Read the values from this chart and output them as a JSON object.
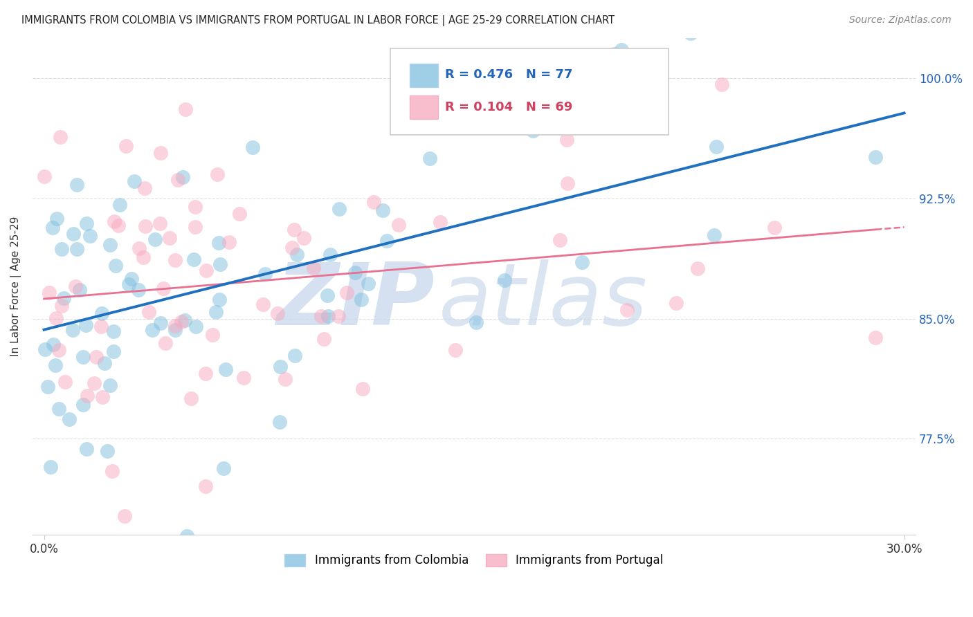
{
  "title": "IMMIGRANTS FROM COLOMBIA VS IMMIGRANTS FROM PORTUGAL IN LABOR FORCE | AGE 25-29 CORRELATION CHART",
  "source": "Source: ZipAtlas.com",
  "ylabel": "In Labor Force | Age 25-29",
  "xlim": [
    0.0,
    0.3
  ],
  "ylim": [
    0.715,
    1.025
  ],
  "yticks": [
    0.775,
    0.85,
    0.925,
    1.0
  ],
  "ytick_labels": [
    "77.5%",
    "85.0%",
    "92.5%",
    "100.0%"
  ],
  "xticks": [
    0.0,
    0.3
  ],
  "xtick_labels": [
    "0.0%",
    "30.0%"
  ],
  "colombia_R": 0.476,
  "colombia_N": 77,
  "portugal_R": 0.104,
  "portugal_N": 69,
  "colombia_color": "#7fbfdf",
  "portugal_color": "#f8a8be",
  "colombia_line_color": "#2070c0",
  "portugal_line_color": "#e87090",
  "watermark_zip": "ZIP",
  "watermark_atlas": "atlas",
  "legend_R_color": "#2566b8",
  "legend_portugal_R_color": "#d04060"
}
